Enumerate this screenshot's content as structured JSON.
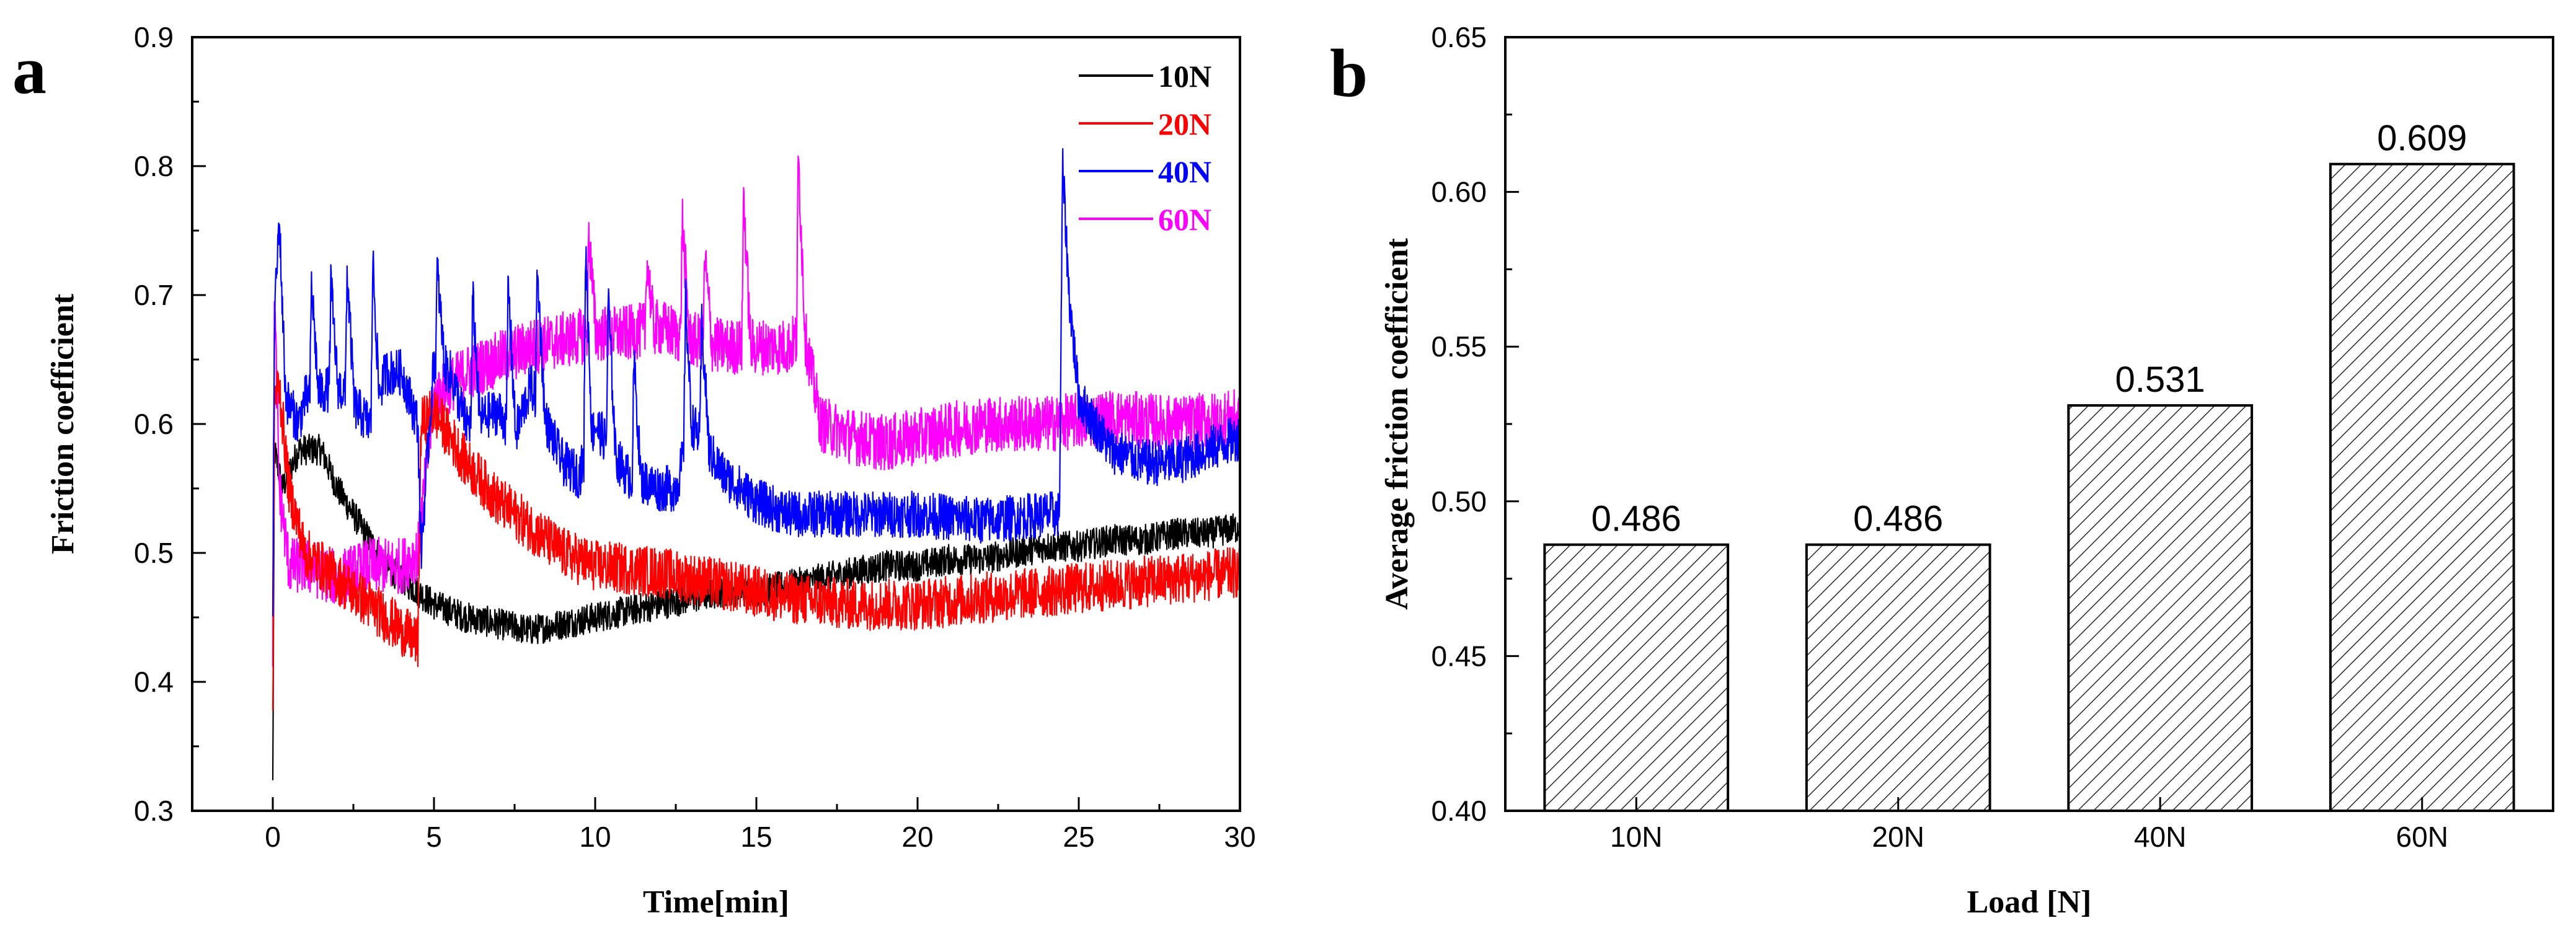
{
  "chart_data": [
    {
      "panel": "a",
      "type": "line",
      "title": "",
      "xlabel": "Time[min]",
      "ylabel": "Friction coefficient",
      "xlim": [
        -2.5,
        30
      ],
      "ylim": [
        0.3,
        0.9
      ],
      "xticks": [
        0,
        5,
        10,
        15,
        20,
        25,
        30
      ],
      "yticks": [
        0.3,
        0.4,
        0.5,
        0.6,
        0.7,
        0.8,
        0.9
      ],
      "legend_position": "top-right",
      "series": [
        {
          "name": "10N",
          "color": "#000000",
          "noise": 0.012,
          "points": [
            [
              0,
              0.32
            ],
            [
              0.05,
              0.58
            ],
            [
              0.3,
              0.55
            ],
            [
              0.8,
              0.58
            ],
            [
              1.5,
              0.58
            ],
            [
              2,
              0.55
            ],
            [
              2.5,
              0.53
            ],
            [
              3,
              0.51
            ],
            [
              3.5,
              0.49
            ],
            [
              4,
              0.48
            ],
            [
              4.5,
              0.47
            ],
            [
              5,
              0.46
            ],
            [
              6,
              0.45
            ],
            [
              7,
              0.445
            ],
            [
              8,
              0.44
            ],
            [
              9,
              0.445
            ],
            [
              10,
              0.45
            ],
            [
              11,
              0.455
            ],
            [
              12,
              0.46
            ],
            [
              13,
              0.465
            ],
            [
              14,
              0.47
            ],
            [
              15,
              0.47
            ],
            [
              16,
              0.475
            ],
            [
              17,
              0.48
            ],
            [
              18,
              0.485
            ],
            [
              19,
              0.49
            ],
            [
              20,
              0.49
            ],
            [
              21,
              0.495
            ],
            [
              22,
              0.495
            ],
            [
              23,
              0.5
            ],
            [
              24,
              0.505
            ],
            [
              25,
              0.505
            ],
            [
              26,
              0.51
            ],
            [
              27,
              0.51
            ],
            [
              28,
              0.515
            ],
            [
              29,
              0.515
            ],
            [
              30,
              0.52
            ]
          ],
          "spikes": []
        },
        {
          "name": "20N",
          "color": "#ff0000",
          "noise": 0.02,
          "points": [
            [
              0,
              0.36
            ],
            [
              0.05,
              0.62
            ],
            [
              0.2,
              0.63
            ],
            [
              0.5,
              0.55
            ],
            [
              1,
              0.5
            ],
            [
              2,
              0.48
            ],
            [
              3,
              0.46
            ],
            [
              4,
              0.44
            ],
            [
              4.5,
              0.43
            ],
            [
              4.6,
              0.6
            ],
            [
              5,
              0.61
            ],
            [
              6,
              0.57
            ],
            [
              7,
              0.54
            ],
            [
              8,
              0.52
            ],
            [
              9,
              0.5
            ],
            [
              10,
              0.49
            ],
            [
              12,
              0.485
            ],
            [
              14,
              0.475
            ],
            [
              16,
              0.465
            ],
            [
              18,
              0.46
            ],
            [
              20,
              0.46
            ],
            [
              22,
              0.465
            ],
            [
              24,
              0.47
            ],
            [
              26,
              0.475
            ],
            [
              28,
              0.48
            ],
            [
              30,
              0.485
            ]
          ],
          "spikes": []
        },
        {
          "name": "40N",
          "color": "#0000ff",
          "noise": 0.018,
          "points": [
            [
              0,
              0.45
            ],
            [
              0.05,
              0.68
            ],
            [
              0.2,
              0.76
            ],
            [
              0.4,
              0.62
            ],
            [
              0.8,
              0.6
            ],
            [
              1,
              0.62
            ],
            [
              2,
              0.63
            ],
            [
              3,
              0.6
            ],
            [
              3.5,
              0.64
            ],
            [
              4,
              0.64
            ],
            [
              4.5,
              0.6
            ],
            [
              4.6,
              0.5
            ],
            [
              5,
              0.65
            ],
            [
              5.5,
              0.64
            ],
            [
              6,
              0.6
            ],
            [
              7,
              0.61
            ],
            [
              7.5,
              0.59
            ],
            [
              8,
              0.63
            ],
            [
              8.5,
              0.6
            ],
            [
              9,
              0.57
            ],
            [
              9.5,
              0.56
            ],
            [
              10,
              0.6
            ],
            [
              10.5,
              0.58
            ],
            [
              11,
              0.56
            ],
            [
              12,
              0.55
            ],
            [
              12.5,
              0.55
            ],
            [
              13,
              0.6
            ],
            [
              14,
              0.56
            ],
            [
              15,
              0.54
            ],
            [
              16,
              0.53
            ],
            [
              18,
              0.53
            ],
            [
              20,
              0.53
            ],
            [
              22,
              0.525
            ],
            [
              24,
              0.53
            ],
            [
              24.4,
              0.53
            ],
            [
              24.5,
              0.8
            ],
            [
              24.7,
              0.7
            ],
            [
              25,
              0.62
            ],
            [
              25.5,
              0.6
            ],
            [
              26,
              0.58
            ],
            [
              27,
              0.57
            ],
            [
              28,
              0.57
            ],
            [
              29,
              0.58
            ],
            [
              30,
              0.59
            ]
          ],
          "spikes": [
            [
              1.2,
              0.71
            ],
            [
              1.8,
              0.71
            ],
            [
              2.3,
              0.72
            ],
            [
              3.1,
              0.73
            ],
            [
              5.1,
              0.72
            ],
            [
              6.2,
              0.7
            ],
            [
              7.3,
              0.71
            ],
            [
              8.2,
              0.72
            ],
            [
              9.7,
              0.74
            ],
            [
              10.4,
              0.7
            ],
            [
              11.2,
              0.65
            ],
            [
              12.8,
              0.7
            ],
            [
              13.3,
              0.68
            ]
          ]
        },
        {
          "name": "60N",
          "color": "#ff00ff",
          "noise": 0.022,
          "points": [
            [
              0,
              0.43
            ],
            [
              0.05,
              0.7
            ],
            [
              0.2,
              0.55
            ],
            [
              0.5,
              0.49
            ],
            [
              1,
              0.49
            ],
            [
              2,
              0.48
            ],
            [
              3,
              0.49
            ],
            [
              4,
              0.49
            ],
            [
              4.5,
              0.5
            ],
            [
              5,
              0.62
            ],
            [
              6,
              0.64
            ],
            [
              7,
              0.65
            ],
            [
              8,
              0.66
            ],
            [
              9,
              0.665
            ],
            [
              10,
              0.67
            ],
            [
              11,
              0.67
            ],
            [
              12,
              0.675
            ],
            [
              13,
              0.665
            ],
            [
              14,
              0.66
            ],
            [
              15,
              0.66
            ],
            [
              16,
              0.66
            ],
            [
              16.5,
              0.67
            ],
            [
              17,
              0.6
            ],
            [
              18,
              0.59
            ],
            [
              19,
              0.585
            ],
            [
              20,
              0.59
            ],
            [
              22,
              0.6
            ],
            [
              24,
              0.6
            ],
            [
              26,
              0.605
            ],
            [
              28,
              0.6
            ],
            [
              30,
              0.605
            ]
          ],
          "spikes": [
            [
              9.8,
              0.75
            ],
            [
              11.6,
              0.73
            ],
            [
              12.7,
              0.76
            ],
            [
              13.4,
              0.73
            ],
            [
              14.6,
              0.78
            ],
            [
              16.3,
              0.81
            ]
          ]
        }
      ]
    },
    {
      "panel": "b",
      "type": "bar",
      "title": "",
      "xlabel": "Load [N]",
      "ylabel": "Average friction coefficient",
      "categories": [
        "10N",
        "20N",
        "40N",
        "60N"
      ],
      "values": [
        0.486,
        0.486,
        0.531,
        0.609
      ],
      "value_labels": [
        "0.486",
        "0.486",
        "0.531",
        "0.609"
      ],
      "ylim": [
        0.4,
        0.65
      ],
      "yticks": [
        "0.40",
        "0.45",
        "0.50",
        "0.55",
        "0.60",
        "0.65"
      ],
      "fill": "hatched",
      "bar_color": "#000000"
    }
  ]
}
